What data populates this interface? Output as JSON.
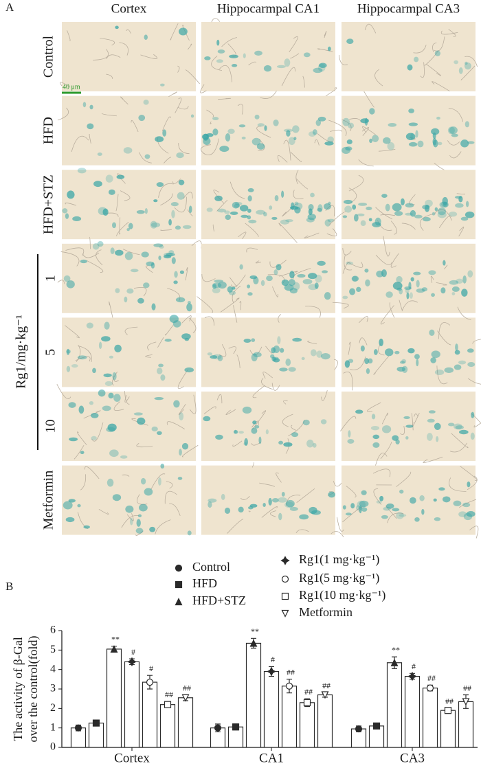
{
  "panel_a": {
    "label": "A",
    "columns": [
      "Cortex",
      "Hippocarmpal CA1",
      "Hippocarmpal CA3"
    ],
    "rows": [
      "Control",
      "HFD",
      "HFD+STZ",
      "1",
      "5",
      "10",
      "Metformin"
    ],
    "group_label": "Rg1/mg·kg⁻¹",
    "scale_bar": "40 μm"
  },
  "chart_data": {
    "type": "bar",
    "panel_label": "B",
    "y_label": [
      "The activity of β-Gal",
      "over the control(fold)"
    ],
    "categories": [
      "Cortex",
      "CA1",
      "CA3"
    ],
    "ylim": [
      0,
      6
    ],
    "yticks": [
      0,
      1,
      2,
      3,
      4,
      5,
      6
    ],
    "series": [
      {
        "name": "Control",
        "color": "#2a2a2a",
        "marker": "circle-filled",
        "values": [
          1.0,
          1.0,
          0.95
        ],
        "errors": [
          0.15,
          0.2,
          0.15
        ],
        "significance": [
          null,
          null,
          null
        ]
      },
      {
        "name": "HFD",
        "color": "#2a2a2a",
        "marker": "square-filled",
        "values": [
          1.25,
          1.05,
          1.1
        ],
        "errors": [
          0.15,
          0.15,
          0.12
        ],
        "significance": [
          null,
          null,
          null
        ]
      },
      {
        "name": "HFD+STZ",
        "color": "#2a2a2a",
        "marker": "triangle-filled",
        "values": [
          5.05,
          5.35,
          4.35
        ],
        "errors": [
          0.15,
          0.25,
          0.3
        ],
        "significance": [
          "**",
          "**",
          "**"
        ]
      },
      {
        "name": "Rg1(1 mg·kg⁻¹)",
        "color": "#2a2a2a",
        "marker": "star-filled",
        "values": [
          4.4,
          3.9,
          3.65
        ],
        "errors": [
          0.15,
          0.25,
          0.15
        ],
        "significance": [
          "#",
          "#",
          "#"
        ]
      },
      {
        "name": "Rg1(5 mg·kg⁻¹)",
        "color": "#2a2a2a",
        "marker": "circle-open",
        "values": [
          3.35,
          3.15,
          3.05
        ],
        "errors": [
          0.35,
          0.35,
          0.15
        ],
        "significance": [
          "#",
          "##",
          "##"
        ]
      },
      {
        "name": "Rg1(10 mg·kg⁻¹)",
        "color": "#2a2a2a",
        "marker": "square-open",
        "values": [
          2.2,
          2.3,
          1.9
        ],
        "errors": [
          0.15,
          0.2,
          0.12
        ],
        "significance": [
          "##",
          "##",
          "##"
        ]
      },
      {
        "name": "Metformin",
        "color": "#2a2a2a",
        "marker": "triangle-down-open",
        "values": [
          2.55,
          2.7,
          2.35
        ],
        "errors": [
          0.15,
          0.12,
          0.35
        ],
        "significance": [
          "##",
          "##",
          "##"
        ]
      }
    ]
  }
}
